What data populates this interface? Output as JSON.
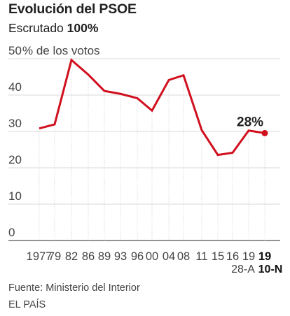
{
  "header": {
    "title": "Evolución del PSOE",
    "subtitle_prefix": "Escrutado",
    "subtitle_value": "100%"
  },
  "chart_data": {
    "type": "line",
    "ylabel": "% de los votos",
    "ylim": [
      0,
      50
    ],
    "yticks": [
      0,
      10,
      20,
      30,
      40,
      50
    ],
    "grid": "horizontal",
    "line_color": "#d0101e",
    "categories": [
      "1977",
      "79",
      "82",
      "86",
      "89",
      "93",
      "96",
      "00",
      "04",
      "08",
      "11",
      "15",
      "16",
      "19",
      "19"
    ],
    "category_sublabels": [
      "",
      "",
      "",
      "",
      "",
      "",
      "",
      "",
      "",
      "",
      "",
      "",
      "",
      "28-A",
      "10-N"
    ],
    "values": [
      29.3,
      30.4,
      48.1,
      44.1,
      39.6,
      38.8,
      37.6,
      34.2,
      42.6,
      43.9,
      28.8,
      22.0,
      22.6,
      28.7,
      28.0
    ],
    "last_value_label": "28%"
  },
  "footer": {
    "source": "Fuente: Ministerio del Interior",
    "brand": "EL PAÍS"
  }
}
